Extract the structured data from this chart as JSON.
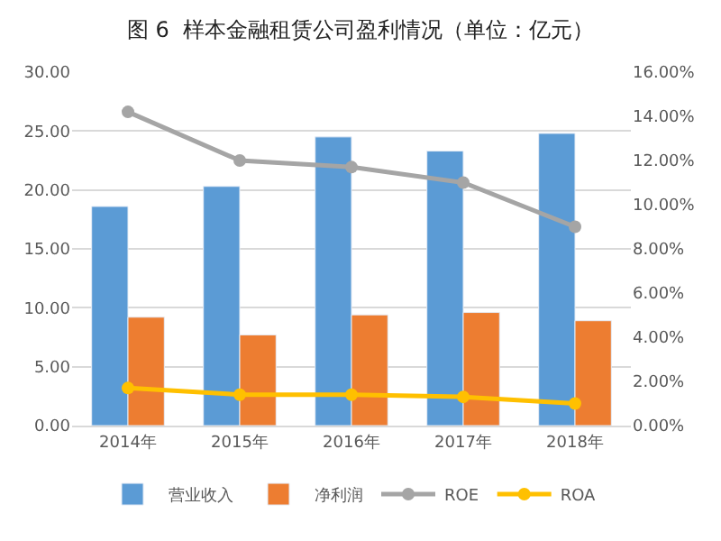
{
  "chart_data": {
    "type": "bar",
    "title": "图 6  样本金融租赁公司盈利情况（单位：亿元）",
    "categories": [
      "2014年",
      "2015年",
      "2016年",
      "2017年",
      "2018年"
    ],
    "series": [
      {
        "name": "营业收入",
        "color": "#5b9bd5",
        "values": [
          18.6,
          20.3,
          24.5,
          23.3,
          24.8
        ]
      },
      {
        "name": "净利润",
        "color": "#ed7d31",
        "values": [
          9.2,
          7.7,
          9.4,
          9.6,
          8.9
        ]
      },
      {
        "name": "ROE",
        "type": "line",
        "axis": "y2",
        "marker": "circle",
        "color": "#a5a5a5",
        "values": [
          14.2,
          12.0,
          11.7,
          11.0,
          9.0
        ]
      },
      {
        "name": "ROA",
        "type": "line",
        "axis": "y2",
        "marker": "circle",
        "color": "#ffc000",
        "values": [
          1.7,
          1.4,
          1.4,
          1.3,
          1.0
        ]
      }
    ],
    "ylim": [
      0,
      30
    ],
    "yticks": [
      {
        "value": 0,
        "label": "0.00"
      },
      {
        "value": 5,
        "label": "5.00"
      },
      {
        "value": 10,
        "label": "10.00"
      },
      {
        "value": 15,
        "label": "15.00"
      },
      {
        "value": 20,
        "label": "20.00"
      },
      {
        "value": 25,
        "label": "25.00"
      },
      {
        "value": 30,
        "label": "30.00"
      }
    ],
    "y2lim": [
      0,
      16
    ],
    "y2ticks": [
      {
        "value": 0,
        "label": "0.00%"
      },
      {
        "value": 2,
        "label": "2.00%"
      },
      {
        "value": 4,
        "label": "4.00%"
      },
      {
        "value": 6,
        "label": "6.00%"
      },
      {
        "value": 8,
        "label": "8.00%"
      },
      {
        "value": 10,
        "label": "10.00%"
      },
      {
        "value": 12,
        "label": "12.00%"
      },
      {
        "value": 14,
        "label": "14.00%"
      },
      {
        "value": 16,
        "label": "16.00%"
      }
    ],
    "grid": "y",
    "legend": "bottom"
  }
}
